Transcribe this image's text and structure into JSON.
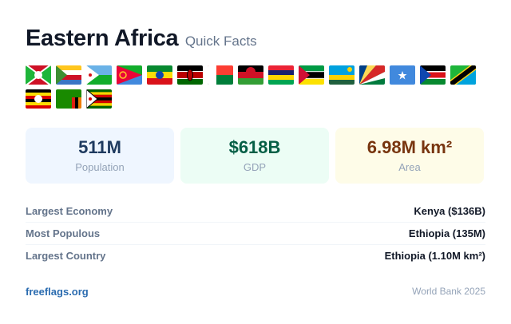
{
  "header": {
    "title": "Eastern Africa",
    "subtitle": "Quick Facts"
  },
  "stats": [
    {
      "value": "511M",
      "label": "Population"
    },
    {
      "value": "$618B",
      "label": "GDP"
    },
    {
      "value": "6.98M km²",
      "label": "Area"
    }
  ],
  "facts": [
    {
      "label": "Largest Economy",
      "value": "Kenya ($136B)"
    },
    {
      "label": "Most Populous",
      "value": "Ethiopia (135M)"
    },
    {
      "label": "Largest Country",
      "value": "Ethiopia (1.10M km²)"
    }
  ],
  "footer": {
    "link": "freeflags.org",
    "source": "World Bank 2025"
  }
}
